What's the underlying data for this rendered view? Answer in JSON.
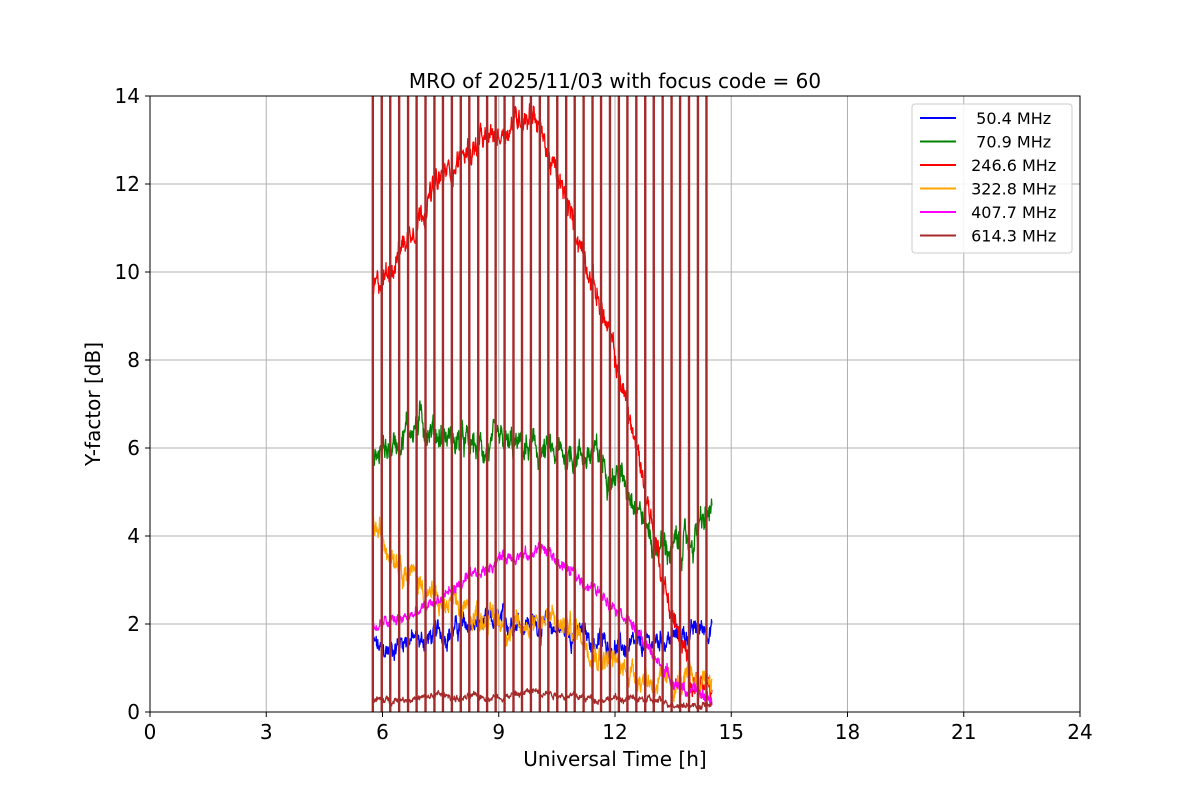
{
  "chart_data": {
    "type": "line",
    "title": "MRO of 2025/11/03 with focus code = 60",
    "xlabel": "Universal Time [h]",
    "ylabel": "Y-factor [dB]",
    "xlim": [
      0,
      24
    ],
    "ylim": [
      0,
      14
    ],
    "xticks": [
      0,
      3,
      6,
      9,
      12,
      15,
      18,
      21,
      24
    ],
    "yticks": [
      0,
      2,
      4,
      6,
      8,
      10,
      12,
      14
    ],
    "grid": true,
    "legend_position": "top-right",
    "x_start": 5.75,
    "x_end": 14.5,
    "calibration_spike_times": [
      5.75,
      5.98,
      6.2,
      6.43,
      6.66,
      6.88,
      7.11,
      7.34,
      7.56,
      7.79,
      8.02,
      8.24,
      8.47,
      8.7,
      8.92,
      9.15,
      9.38,
      9.6,
      9.83,
      10.06,
      10.28,
      10.51,
      10.74,
      10.96,
      11.19,
      11.42,
      11.64,
      11.87,
      12.1,
      12.32,
      12.55,
      12.78,
      13.0,
      13.23,
      13.46,
      13.68,
      13.91,
      14.14,
      14.36
    ],
    "series": [
      {
        "name": "50.4 MHz",
        "label": "  50.4 MHz",
        "color": "#0000ff",
        "noise": 0.25,
        "x": [
          5.75,
          6.0,
          6.3,
          6.6,
          7.0,
          7.5,
          8.0,
          8.5,
          9.0,
          9.5,
          10.0,
          10.5,
          11.0,
          11.5,
          12.0,
          12.5,
          13.0,
          13.5,
          14.0,
          14.5
        ],
        "y": [
          1.6,
          1.3,
          1.5,
          1.7,
          1.6,
          1.8,
          1.9,
          2.0,
          2.0,
          2.1,
          2.0,
          1.9,
          1.8,
          1.6,
          1.5,
          1.4,
          1.6,
          1.7,
          1.8,
          2.0
        ]
      },
      {
        "name": "70.9 MHz",
        "label": "  70.9 MHz",
        "color": "#008000",
        "noise": 0.35,
        "x": [
          5.75,
          6.0,
          6.3,
          6.6,
          7.0,
          7.5,
          8.0,
          8.5,
          9.0,
          9.5,
          10.0,
          10.5,
          11.0,
          11.5,
          12.0,
          12.5,
          13.0,
          13.5,
          14.0,
          14.5
        ],
        "y": [
          5.6,
          6.0,
          6.1,
          6.4,
          6.6,
          6.3,
          6.1,
          6.0,
          6.0,
          6.0,
          5.9,
          5.8,
          5.9,
          5.8,
          5.4,
          5.0,
          3.8,
          3.7,
          3.9,
          4.6
        ]
      },
      {
        "name": "246.6 MHz",
        "label": " 246.6 MHz",
        "color": "#ff0000",
        "noise": 0.3,
        "x": [
          5.75,
          6.0,
          6.5,
          7.0,
          7.5,
          8.0,
          8.5,
          9.0,
          9.5,
          9.9,
          10.3,
          10.8,
          11.3,
          11.8,
          12.3,
          12.8,
          13.3,
          13.7,
          14.0,
          14.5
        ],
        "y": [
          9.5,
          9.8,
          10.6,
          11.4,
          12.1,
          12.6,
          12.9,
          13.1,
          13.5,
          13.7,
          12.6,
          11.4,
          10.2,
          8.7,
          7.0,
          5.0,
          2.8,
          1.5,
          0.8,
          0.3
        ]
      },
      {
        "name": "322.8 MHz",
        "label": " 322.8 MHz",
        "color": "#ffa500",
        "noise": 0.3,
        "x": [
          5.75,
          6.0,
          6.3,
          6.6,
          7.0,
          7.5,
          8.0,
          8.5,
          9.0,
          9.5,
          10.0,
          10.5,
          11.0,
          11.5,
          12.0,
          12.5,
          13.0,
          13.5,
          14.0,
          14.5
        ],
        "y": [
          4.3,
          3.9,
          3.7,
          3.3,
          2.9,
          2.4,
          2.3,
          2.2,
          2.1,
          1.8,
          2.2,
          2.0,
          1.9,
          1.4,
          1.1,
          0.9,
          0.7,
          0.6,
          0.7,
          0.8
        ]
      },
      {
        "name": "407.7 MHz",
        "label": " 407.7 MHz",
        "color": "#ff00ff",
        "noise": 0.15,
        "x": [
          5.75,
          6.0,
          6.5,
          7.0,
          7.5,
          8.0,
          8.5,
          9.0,
          9.5,
          9.8,
          10.0,
          10.3,
          10.8,
          11.3,
          11.8,
          12.3,
          12.8,
          13.3,
          13.8,
          14.5
        ],
        "y": [
          1.9,
          2.0,
          2.1,
          2.3,
          2.6,
          2.9,
          3.1,
          3.5,
          3.6,
          3.5,
          3.8,
          3.6,
          3.2,
          2.9,
          2.6,
          2.2,
          1.5,
          0.9,
          0.5,
          0.3
        ]
      },
      {
        "name": "614.3 MHz",
        "label": " 614.3 MHz",
        "color": "#a52a2a",
        "noise": 0.08,
        "x": [
          5.75,
          6.0,
          6.5,
          7.0,
          7.5,
          8.0,
          8.5,
          9.0,
          9.5,
          10.0,
          10.5,
          11.0,
          11.5,
          12.0,
          12.5,
          13.0,
          13.5,
          14.0,
          14.5
        ],
        "y": [
          0.3,
          0.25,
          0.3,
          0.3,
          0.4,
          0.3,
          0.35,
          0.35,
          0.4,
          0.5,
          0.4,
          0.35,
          0.3,
          0.3,
          0.3,
          0.25,
          0.2,
          0.15,
          0.15
        ]
      }
    ]
  }
}
